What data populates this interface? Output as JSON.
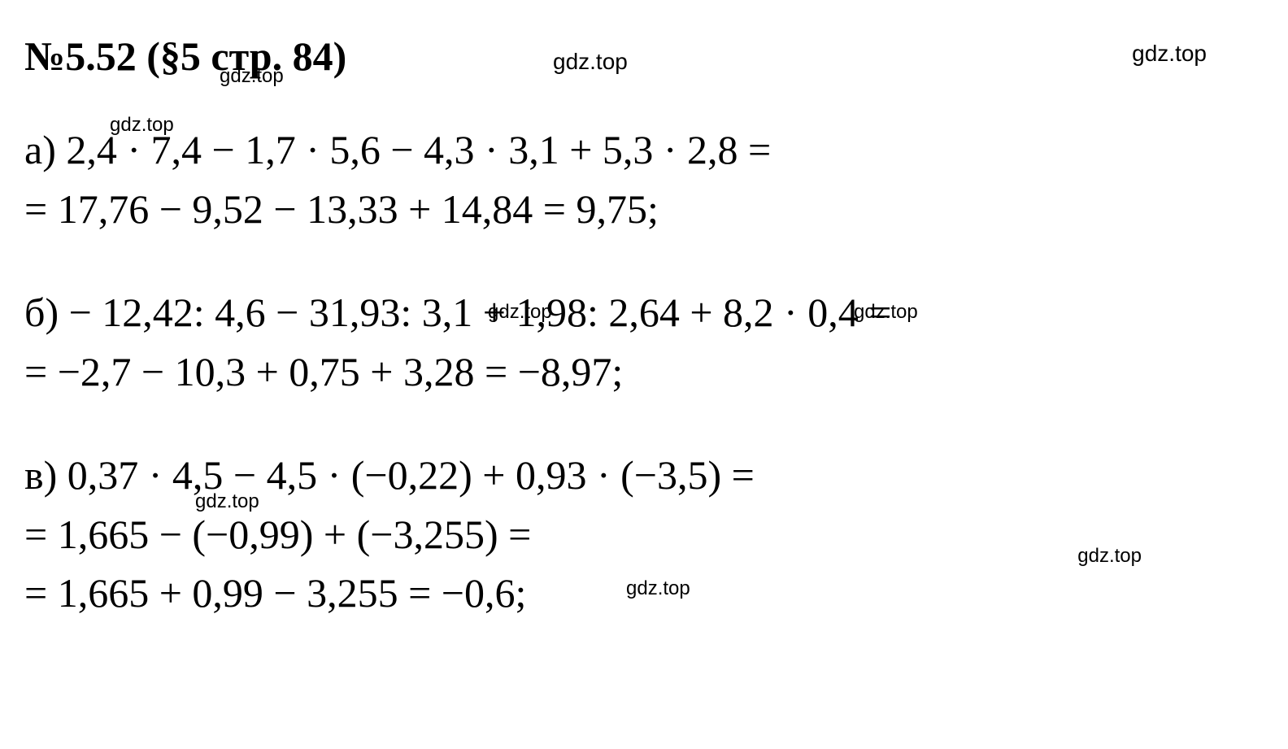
{
  "header": {
    "title": "№5.52 (§5 стр. 84)"
  },
  "watermarks": {
    "text": "gdz.top"
  },
  "problems": {
    "a": {
      "line1": "а) 2,4 · 7,4 − 1,7 · 5,6 − 4,3 · 3,1 + 5,3 · 2,8 =",
      "line2": "= 17,76 − 9,52 − 13,33 + 14,84 = 9,75;"
    },
    "b": {
      "line1": "б) − 12,42: 4,6 − 31,93: 3,1 + 1,98: 2,64 + 8,2 · 0,4 =",
      "line2": "= −2,7 − 10,3 + 0,75 + 3,28 = −8,97;"
    },
    "c": {
      "line1": "в) 0,37 · 4,5 − 4,5 · (−0,22) + 0,93 · (−3,5) =",
      "line2": "= 1,665 − (−0,99) + (−3,255) =",
      "line3": "= 1,665 + 0,99 − 3,255 = −0,6;"
    }
  },
  "styling": {
    "background_color": "#ffffff",
    "text_color": "#000000",
    "font_family": "Times New Roman",
    "header_fontsize": 50,
    "header_fontweight": "bold",
    "math_fontsize": 50,
    "watermark_fontsize": 28,
    "watermark_fontfamily": "Arial"
  }
}
